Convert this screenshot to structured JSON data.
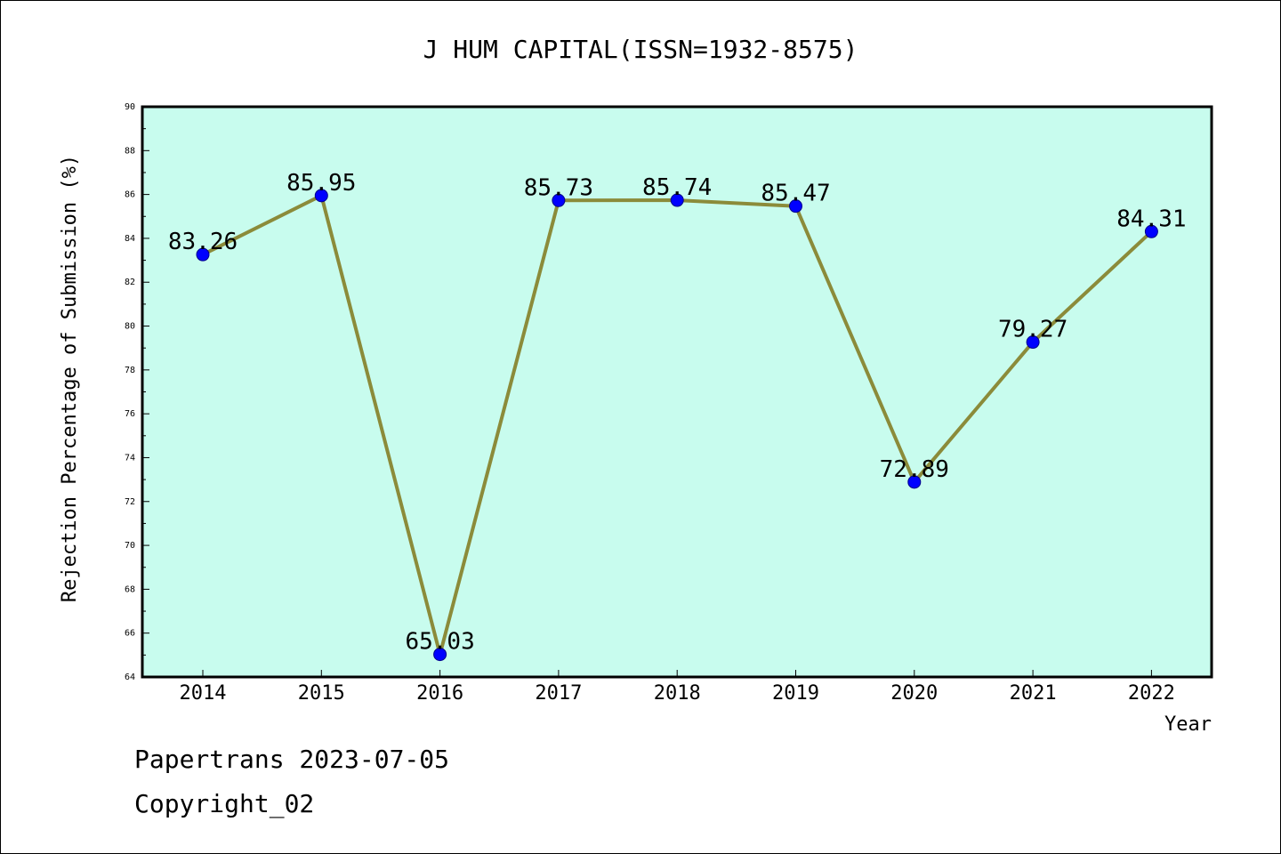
{
  "chart_data": {
    "type": "line",
    "title": "J HUM CAPITAL(ISSN=1932-8575)",
    "xlabel": "Year",
    "ylabel": "Rejection Percentage of Submission (%)",
    "categories": [
      "2014",
      "2015",
      "2016",
      "2017",
      "2018",
      "2019",
      "2020",
      "2021",
      "2022"
    ],
    "values": [
      83.26,
      85.95,
      65.03,
      85.73,
      85.74,
      85.47,
      72.89,
      79.27,
      84.31
    ],
    "data_labels": [
      "83.26",
      "85.95",
      "65.03",
      "85.73",
      "85.74",
      "85.47",
      "72.89",
      "79.27",
      "84.31"
    ],
    "ylim": [
      64,
      90
    ],
    "yticks": [
      64,
      66,
      68,
      70,
      72,
      74,
      76,
      78,
      80,
      82,
      84,
      86,
      88,
      90
    ],
    "grid": false,
    "legend": "none",
    "colors": {
      "plot_background": "#c8fcee",
      "line": "#8b8b3a",
      "marker": "#0000ff",
      "axis": "#000000"
    }
  },
  "footer": {
    "line1": "Papertrans 2023-07-05",
    "line2": "Copyright_02"
  }
}
